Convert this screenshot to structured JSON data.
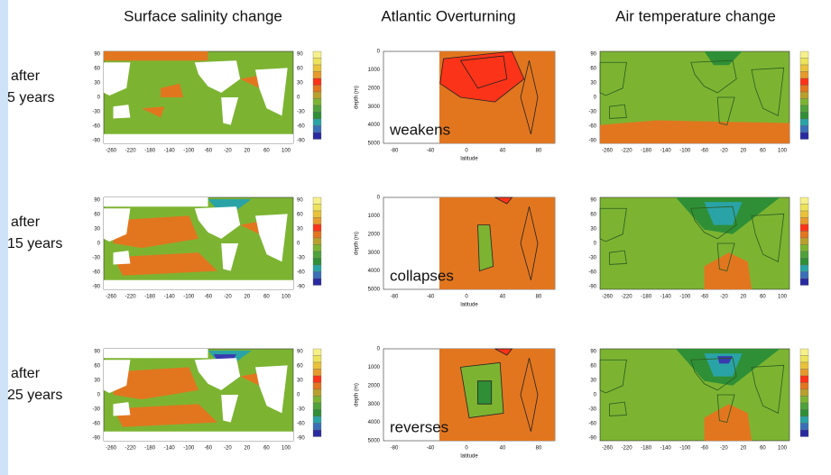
{
  "columns": [
    "Surface salinity change",
    "Atlantic Overturning",
    "Air temperature change"
  ],
  "rows": [
    {
      "label_1": "after",
      "label_2": "5 years",
      "annotation": "weakens"
    },
    {
      "label_1": "after",
      "label_2": "15 years",
      "annotation": "collapses"
    },
    {
      "label_1": "after",
      "label_2": "25 years",
      "annotation": "reverses"
    }
  ],
  "map_axes": {
    "xticks": [
      -260,
      -220,
      -180,
      -140,
      -100,
      -60,
      -20,
      20,
      60,
      100
    ],
    "yticks": [
      90,
      60,
      30,
      0,
      -30,
      -60,
      -90
    ]
  },
  "overturning_axes": {
    "xlabel": "latitude",
    "ylabel": "depth (m)",
    "xticks": [
      -80,
      -40,
      0,
      40,
      80
    ],
    "yticks": [
      0,
      1000,
      2000,
      3000,
      4000,
      5000
    ]
  }
}
